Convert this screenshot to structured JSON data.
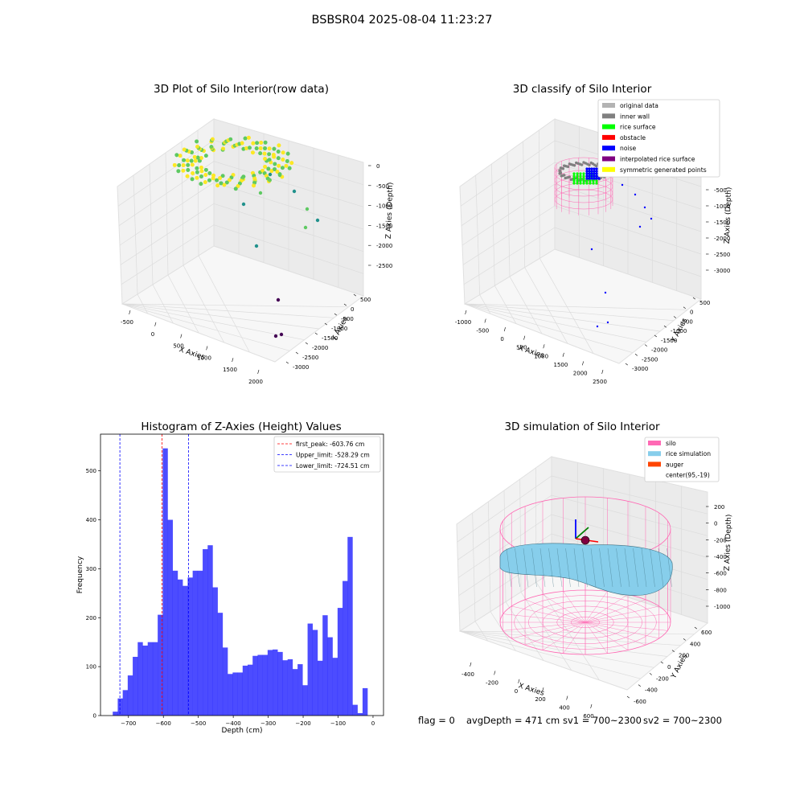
{
  "suptitle": "BSBSR04 2025-08-04 11:23:27",
  "footer": {
    "flag": "flag = 0",
    "avg_depth": "avgDepth = 471 cm",
    "sv1": "sv1 = 700~2300",
    "sv2": "sv2 = 700~2300"
  },
  "chart_data": [
    {
      "type": "scatter",
      "title": "3D Plot of Silo Interior(row data)",
      "xlabel": "X Axies",
      "ylabel": "Y Axies",
      "zlabel": "Z Axies (Depth)",
      "x_ticks": [
        "-500",
        "0",
        "500",
        "1000",
        "1500",
        "2000"
      ],
      "y_ticks": [
        "500",
        "0",
        "-500",
        "-1000",
        "-1500",
        "-2000",
        "-2500",
        "-3000"
      ],
      "z_ticks": [
        "0",
        "-500",
        "-1000",
        "-1500",
        "-2000",
        "-2500"
      ],
      "colormap": [
        "#440154",
        "#3b528b",
        "#21918c",
        "#5ec962",
        "#fde725"
      ]
    },
    {
      "type": "scatter",
      "title": "3D classify of Silo Interior",
      "xlabel": "X Axies",
      "ylabel": "Y Axies",
      "zlabel": "Z Axies (Depth)",
      "x_ticks": [
        "-1000",
        "-500",
        "0",
        "500",
        "1000",
        "1500",
        "2000",
        "2500"
      ],
      "y_ticks": [
        "500",
        "0",
        "-500",
        "-1000",
        "-1500",
        "-2000",
        "-2500",
        "-3000"
      ],
      "z_ticks": [
        "0",
        "-500",
        "-1000",
        "-1500",
        "-2000",
        "-2500",
        "-3000"
      ],
      "legend_position": "top-right",
      "legend": [
        {
          "label": "original data",
          "color": "#b3b3b3"
        },
        {
          "label": "inner wall",
          "color": "#808080"
        },
        {
          "label": "rice surface",
          "color": "#00ff00"
        },
        {
          "label": "obstacle",
          "color": "#ff0000"
        },
        {
          "label": "noise",
          "color": "#0000ff"
        },
        {
          "label": "interpolated rice surface",
          "color": "#800080"
        },
        {
          "label": "symmetric generated points",
          "color": "#ffff00"
        }
      ]
    },
    {
      "type": "bar",
      "title": "Histogram of Z-Axies (Height) Values",
      "xlabel": "Depth (cm)",
      "ylabel": "Frequency",
      "xlim": [
        -780,
        30
      ],
      "ylim": [
        0,
        575
      ],
      "x_ticks": [
        -700,
        -600,
        -500,
        -400,
        -300,
        -200,
        -100,
        0
      ],
      "y_ticks": [
        0,
        100,
        200,
        300,
        400,
        500
      ],
      "bar_color": "#0000ff",
      "bins": {
        "start": -745,
        "width": 14.3,
        "values": [
          8,
          35,
          52,
          82,
          120,
          150,
          143,
          150,
          150,
          206,
          546,
          400,
          296,
          278,
          265,
          282,
          296,
          296,
          340,
          348,
          262,
          210,
          139,
          85,
          88,
          88,
          102,
          104,
          122,
          124,
          124,
          134,
          135,
          130,
          113,
          115,
          95,
          105,
          62,
          188,
          175,
          112,
          205,
          160,
          118,
          220,
          275,
          365,
          22,
          5,
          56
        ]
      },
      "lines": [
        {
          "label": "first_peak: -603.76 cm",
          "value": -603.76,
          "color": "#ff0000"
        },
        {
          "label": "Upper_limit: -528.29 cm",
          "value": -528.29,
          "color": "#0000ff"
        },
        {
          "label": "Lower_limit: -724.51 cm",
          "value": -724.51,
          "color": "#0000ff"
        }
      ],
      "legend_position": "top-right"
    },
    {
      "type": "scatter",
      "title": "3D simulation of Silo Interior",
      "xlabel": "X Axies",
      "ylabel": "Y Axies",
      "zlabel": "Z Axies (Depth)",
      "x_ticks": [
        "-400",
        "-200",
        "0",
        "200",
        "400",
        "600"
      ],
      "y_ticks": [
        "600",
        "400",
        "200",
        "0",
        "-200",
        "-400",
        "-600"
      ],
      "z_ticks": [
        "200",
        "0",
        "-200",
        "-400",
        "-600",
        "-800",
        "-1000"
      ],
      "legend_position": "top-right",
      "legend": [
        {
          "label": "silo",
          "color": "#ff69b4"
        },
        {
          "label": "rice simulation",
          "color": "#87ceeb"
        },
        {
          "label": "auger",
          "color": "#ff4500"
        },
        {
          "label": "center(95,-19)",
          "color": ""
        }
      ]
    }
  ]
}
